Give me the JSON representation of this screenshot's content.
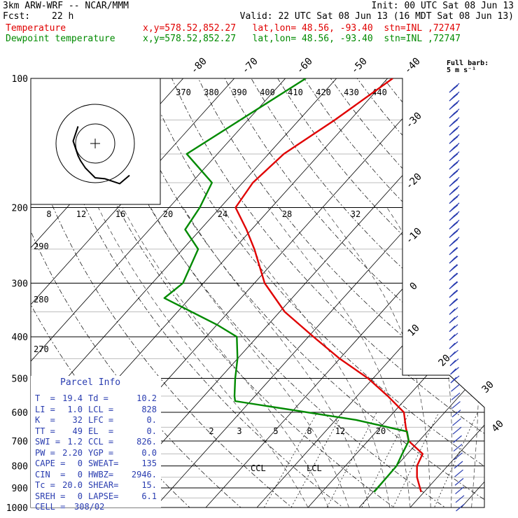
{
  "header": {
    "model": "3km ARW-WRF -- NCAR/MMM",
    "init": "Init: 00 UTC Sat 08 Jun 13",
    "fcst_label": "Fcst:",
    "fcst_value": "22 h",
    "valid": "Valid: 22 UTC Sat 08 Jun 13 (16 MDT Sat 08 Jun 13)",
    "temp_name": "Temperature",
    "temp_info": "x,y=578.52,852.27   lat,lon= 48.56, -93.40  stn=INL ,72747",
    "dew_name": "Dewpoint temperature",
    "dew_info": "x,y=578.52,852.27   lat,lon= 48.56, -93.40  stn=INL ,72747"
  },
  "barb_legend": {
    "line1": "Full barb:",
    "line2": "5 m s⁻¹"
  },
  "colors": {
    "temperature": "#e00000",
    "dewpoint": "#008a00",
    "barbs": "#2a3db0",
    "hodograph": "#000000"
  },
  "parcel_info": {
    "title": "Parcel Info",
    "rows": [
      [
        "T  =",
        "19.4",
        "Td =",
        "10.2"
      ],
      [
        "LI =",
        "1.0",
        "LCL =",
        "828"
      ],
      [
        "K  =",
        "32",
        "LFC =",
        "0."
      ],
      [
        "TT =",
        "49",
        "EL  =",
        "0."
      ],
      [
        "SWI =",
        "1.2",
        "CCL =",
        "826."
      ],
      [
        "PW =",
        "2.20",
        "YGP =",
        "0.0"
      ],
      [
        "CAPE =",
        "0",
        "SWEAT=",
        "135"
      ],
      [
        "CIN  =",
        "0",
        "HWBZ=",
        "2946."
      ],
      [
        "Tc =",
        "20.0",
        "SHEAR=",
        "15."
      ],
      [
        "SREH =",
        "0",
        "LAPSE=",
        "6.1"
      ],
      [
        "CELL =",
        "308/02",
        "",
        ""
      ]
    ]
  },
  "chart_data": {
    "type": "line",
    "pressure_ticks": [
      "100",
      "200",
      "300",
      "400",
      "500",
      "600",
      "700",
      "800",
      "900",
      "1000"
    ],
    "isotherm_labels": [
      "-80",
      "-70",
      "-60",
      "-50",
      "-40",
      "-30",
      "-20",
      "-10",
      "0",
      "10",
      "20",
      "30",
      "40"
    ],
    "theta_labels": [
      "370",
      "380",
      "390",
      "400",
      "410",
      "420",
      "430",
      "440"
    ],
    "dry_adiabat_labels": [
      "290",
      "280",
      "270"
    ],
    "hodo_speed_labels": [
      "8",
      "12",
      "16",
      "20",
      "24",
      "28",
      "32"
    ],
    "hodo_unit": "kts",
    "mixing_ratio_labels": [
      "2",
      "3",
      "5",
      "8",
      "12",
      "20"
    ],
    "marker_labels": {
      "ccl": "CCL",
      "lcl": "LCL"
    },
    "series": [
      {
        "name": "Temperature",
        "points": [
          [
            -59,
            100
          ],
          [
            -63,
            125
          ],
          [
            -67,
            150
          ],
          [
            -68,
            175
          ],
          [
            -67,
            200
          ],
          [
            -61,
            225
          ],
          [
            -56,
            250
          ],
          [
            -48,
            300
          ],
          [
            -39,
            350
          ],
          [
            -29,
            400
          ],
          [
            -20,
            450
          ],
          [
            -11,
            500
          ],
          [
            -4,
            550
          ],
          [
            2,
            600
          ],
          [
            5,
            650
          ],
          [
            8,
            700
          ],
          [
            13,
            750
          ],
          [
            14,
            800
          ],
          [
            16,
            850
          ],
          [
            19.4,
            920
          ]
        ]
      },
      {
        "name": "Dewpoint temperature",
        "points": [
          [
            -76,
            100
          ],
          [
            -86,
            150
          ],
          [
            -76,
            175
          ],
          [
            -74,
            200
          ],
          [
            -73,
            225
          ],
          [
            -67,
            250
          ],
          [
            -64,
            300
          ],
          [
            -65,
            325
          ],
          [
            -50,
            375
          ],
          [
            -44,
            400
          ],
          [
            -40,
            450
          ],
          [
            -37,
            500
          ],
          [
            -34,
            550
          ],
          [
            -33,
            565
          ],
          [
            -6,
            625
          ],
          [
            6,
            665
          ],
          [
            8,
            700
          ],
          [
            9,
            750
          ],
          [
            10,
            800
          ],
          [
            10.2,
            920
          ]
        ]
      }
    ],
    "hodograph": [
      [
        12.5,
        -3.5
      ],
      [
        12,
        -2
      ],
      [
        11.5,
        -0.5
      ],
      [
        12,
        1
      ],
      [
        12.5,
        2.5
      ],
      [
        13,
        3.5
      ],
      [
        14,
        5
      ],
      [
        16,
        7
      ],
      [
        18,
        7.2
      ],
      [
        21,
        8.2
      ],
      [
        23,
        6.5
      ]
    ],
    "wind_barbs_speed_ms": [
      25,
      25,
      25,
      24,
      23,
      22,
      22,
      21,
      20,
      20,
      19,
      18,
      18,
      17,
      16,
      15,
      15,
      14,
      13,
      12,
      11,
      10,
      10,
      9,
      8,
      8,
      7,
      6,
      5,
      5,
      4,
      4,
      3,
      3,
      3,
      2,
      2,
      2,
      1,
      1,
      1,
      1,
      1,
      1,
      1,
      1,
      1,
      1,
      1,
      1
    ]
  }
}
